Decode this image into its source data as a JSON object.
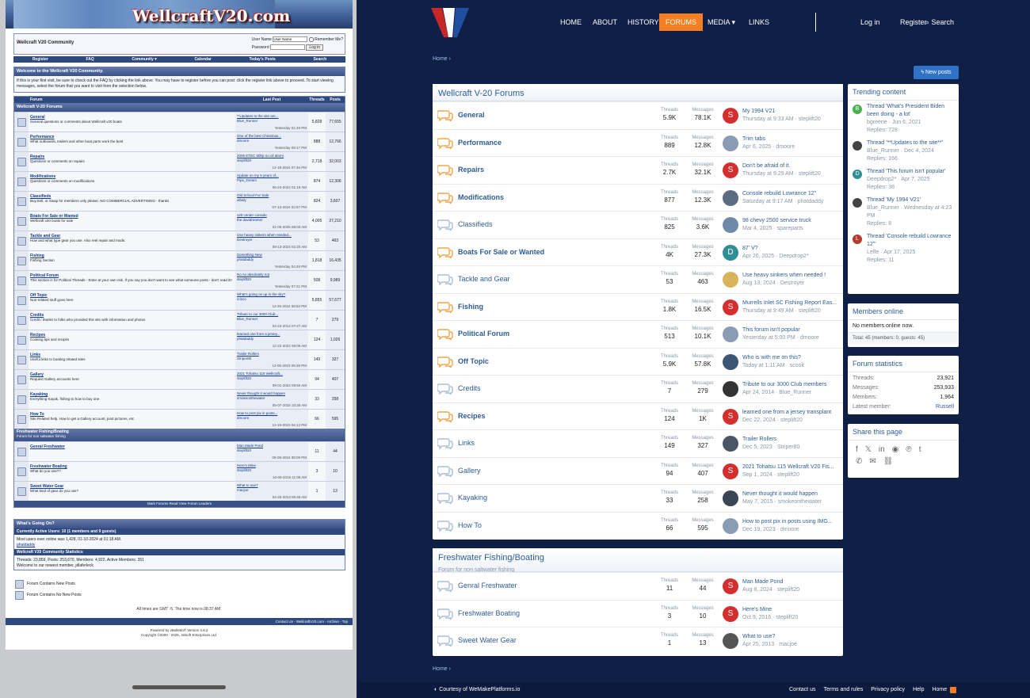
{
  "left": {
    "banner_title": "WellcraftV20.com",
    "header_title": "Wellcraft V20 Community",
    "login": {
      "user_label": "User Name",
      "user_value": "User Name",
      "remember": "Remember Me?",
      "password_label": "Password",
      "button": "Log in"
    },
    "nav": [
      "Register",
      "FAQ",
      "Community ▾",
      "Calendar",
      "Today's Posts",
      "Search"
    ],
    "welcome_title": "Welcome to the Wellcraft V20 Community.",
    "welcome_text": "If this is your first visit, be sure to check out the FAQ by clicking the link above. You may have to register before you can post: click the register link above to proceed. To start viewing messages, select the forum that you want to visit from the selection below.",
    "cols": [
      "",
      "Forum",
      "Last Post",
      "Threads",
      "Posts"
    ],
    "cat1": "Wellcraft V-20 Forums",
    "forums": [
      {
        "n": "General",
        "d": "General questions or comments about Wellcraft v20 boats",
        "lp": "**Updates to the site are...",
        "by": "Blue_Runner",
        "dt": "Yesterday 01:49 PM",
        "t": "5,828",
        "p": "77,655"
      },
      {
        "n": "Performance",
        "d": "What outboards, trailers and other boat parts work the best",
        "lp": "One of the best Christmas...",
        "by": "dmoore",
        "dt": "Yesterday 09:17 PM",
        "t": "888",
        "p": "12,766"
      },
      {
        "n": "Repairs",
        "d": "Questions or comments on repairs",
        "lp": "2006 ETEC 60hp no oil alarm",
        "by": "steplift20",
        "dt": "12-18-2024 07:46 PM",
        "t": "2,718",
        "p": "32,003"
      },
      {
        "n": "Modifications",
        "d": "Questions or comments on modifications",
        "lp": "Update on my 5 years of...",
        "by": "Pipe_Dream",
        "dt": "06-24-2024 01:18 AM",
        "t": "874",
        "p": "12,306"
      },
      {
        "n": "Classifieds",
        "d": "Buy,Sell, or Swap for members only please. NO COMMERCIAL ADVERTISING - thanks",
        "lp": "Old School For Sale",
        "by": "albaly",
        "dt": "07-13-2024 02:57 PM",
        "t": "824",
        "p": "3,607"
      },
      {
        "n": "Boats For Sale or Wanted",
        "d": "Wellcraft v20 boats for sale",
        "lp": "v20 center console",
        "by": "the davidreamer",
        "dt": "01-05-2025 08:03 AM",
        "t": "4,005",
        "p": "27,210"
      },
      {
        "n": "Tackle and Gear",
        "d": "How and what type gear you use. Also reel repair and mods.",
        "lp": "Use heavy sinkers when needed...",
        "by": "Destroyer",
        "dt": "08-13-2024 02:25 AM",
        "t": "53",
        "p": "463"
      },
      {
        "n": "Fishing",
        "d": "Fishing Section",
        "lp": "Something New",
        "by": "phatdaddy",
        "dt": "Yesterday 04:48 PM",
        "t": "1,818",
        "p": "16,435"
      },
      {
        "n": "Political Forum",
        "d": "This section is for Political Threads - Enter at your own risk. If you say you don't want to see what someone posts - don't read it!!",
        "lp": "No no absolutely not",
        "by": "steplift20",
        "dt": "Yesterday 07:21 PM",
        "t": "508",
        "p": "9,989"
      },
      {
        "n": "Off Topic",
        "d": "Non-related stuff goes here",
        "lp": "What's going on up in the sky?",
        "by": "crisco",
        "dt": "12-25-2024 08:53 PM",
        "t": "5,855",
        "p": "57,677"
      },
      {
        "n": "Credits",
        "d": "Credit / thanks to folks who provided this site with information and photos",
        "lp": "Tribute to our 3000 Club...",
        "by": "Blue_Runner",
        "dt": "04-24-2014 07:27 AM",
        "t": "7",
        "p": "279"
      },
      {
        "n": "Recipes",
        "d": "Cooking tips and recipes",
        "lp": "learned one from a jersey...",
        "by": "phatdaddy",
        "dt": "12-22-2024 08:06 AM",
        "t": "124",
        "p": "1,026"
      },
      {
        "n": "Links",
        "d": "Useful links to boating related sites",
        "lp": "Trailer Rollers",
        "by": "Striper80",
        "dt": "12-05-2023 08:39 PM",
        "t": "149",
        "p": "327"
      },
      {
        "n": "Gallery",
        "d": "Request Gallery accounts here",
        "lp": "2021 Tohatsu 115 Wellcraft...",
        "by": "steplift20",
        "dt": "09-01-2024 09:50 AM",
        "t": "94",
        "p": "407"
      },
      {
        "n": "Kayaking",
        "d": "Everything Kayak, fishing to how to buy one",
        "lp": "Never thought it would happen",
        "by": "smokeonthewater",
        "dt": "05-07-2015 10:38 AM",
        "t": "33",
        "p": "258"
      },
      {
        "n": "How To",
        "d": "Site Related help. How to get a Gallery account, post pictures, etc",
        "lp": "How to post pix in posts...",
        "by": "dmoore",
        "dt": "12-19-2023 04:13 PM",
        "t": "66",
        "p": "595"
      }
    ],
    "cat2": "Freshwater Fishing/Boating",
    "cat2_desc": "Forum for non saltwater fishing",
    "forums2": [
      {
        "n": "Genral Freshwater",
        "d": "",
        "lp": "Man Made Pond",
        "by": "steplift20",
        "dt": "08-08-2024 08:09 PM",
        "t": "11",
        "p": "44"
      },
      {
        "n": "Freshwater Boating",
        "d": "What do you use??",
        "lp": "Here's Mine",
        "by": "steplift20",
        "dt": "10-09-2016 11:08 AM",
        "t": "3",
        "p": "10"
      },
      {
        "n": "Sweet Water Gear",
        "d": "What kind of gear do you use?",
        "lp": "What to use?",
        "by": "macjoe",
        "dt": "04-25-2013 09:48 AM",
        "t": "1",
        "p": "13"
      }
    ],
    "foot_links": "Mark Forums Read    View Forum Leaders",
    "going_on": "What's Going On?",
    "active_users": "Currently Active Users: 10 (1 members and 9 guests)",
    "most_users": "Most users ever online was 1,428, 01-10-2024 at 01:18 AM.",
    "online_user": "phatdaddy",
    "stats_title": "Wellcraft V20 Community Statistics",
    "stats_text": "Threads: 23,859, Posts: 253,670, Members: 4,922, Active Members: 351",
    "newest": "Welcome to our newest member, jdlaferleck",
    "legend": [
      "Forum Contains New Posts",
      "Forum Contains No New Posts"
    ],
    "times": "All times are GMT -5. The time now is 08:37 AM.",
    "contact": "Contact Us - WellcraftV20.com - Archive - Top",
    "powered": "Powered by vBulletin® Version 3.8.2",
    "copyright": "Copyright ©2000 - 2025, Jelsoft Enterprises Ltd."
  },
  "right": {
    "nav": [
      "HOME",
      "ABOUT",
      "HISTORY",
      "FORUMS",
      "MEDIA",
      "LINKS"
    ],
    "login": "Log in",
    "register": "Register",
    "search": "Search",
    "breadcrumb": "Home",
    "new_posts": "New posts",
    "block1_title": "Wellcraft V-20 Forums",
    "threads_label": "Threads",
    "messages_label": "Messages",
    "nodes": [
      {
        "n": "General",
        "u": true,
        "t": "5.9K",
        "m": "78.1K",
        "lt": "My 1994 V21",
        "meta": "Thursday at 9:33 AM · steplift20",
        "av": "S",
        "ac": "#d32f2f"
      },
      {
        "n": "Performance",
        "u": true,
        "t": "889",
        "m": "12.8K",
        "lt": "Trim tabs",
        "meta": "Apr 6, 2025 · dmoore",
        "av": "",
        "ac": "#8a9bb4"
      },
      {
        "n": "Repairs",
        "u": true,
        "t": "2.7K",
        "m": "32.1K",
        "lt": "Don't be afraid of it.",
        "meta": "Thursday at 9:29 AM · steplift20",
        "av": "S",
        "ac": "#d32f2f"
      },
      {
        "n": "Modifications",
        "u": true,
        "t": "877",
        "m": "12.3K",
        "lt": "Console rebuild Lowrance 12\"",
        "meta": "Saturday at 9:17 AM · phatdaddy",
        "av": "",
        "ac": "#5b6b80"
      },
      {
        "n": "Classifieds",
        "u": false,
        "t": "825",
        "m": "3.6K",
        "lt": "98 chevy 2500 service truck",
        "meta": "Mar 4, 2025 · spareparts",
        "av": "",
        "ac": "#6f8aa8"
      },
      {
        "n": "Boats For Sale or Wanted",
        "u": true,
        "t": "4K",
        "m": "27.3K",
        "lt": "87' V?",
        "meta": "Apr 26, 2025 · Deepdrop2*",
        "av": "D",
        "ac": "#2f8f95"
      },
      {
        "n": "Tackle and Gear",
        "u": false,
        "t": "53",
        "m": "463",
        "lt": "Use heavy sinkers when needed !",
        "meta": "Aug 13, 2024 · Destroyer",
        "av": "",
        "ac": "#d9b35a"
      },
      {
        "n": "Fishing",
        "u": true,
        "t": "1.8K",
        "m": "16.5K",
        "lt": "Murrells Inlet SC Fishing Report Eas...",
        "meta": "Thursday at 9:49 AM · steplift20",
        "av": "S",
        "ac": "#d32f2f"
      },
      {
        "n": "Political Forum",
        "u": true,
        "t": "513",
        "m": "10.1K",
        "lt": "This forum isn't popular",
        "meta": "Yesterday at 5:00 PM · dmoore",
        "av": "",
        "ac": "#8a9bb4"
      },
      {
        "n": "Off Topic",
        "u": true,
        "t": "5.9K",
        "m": "57.8K",
        "lt": "Who is with me on this?",
        "meta": "Today at 1:11 AM · scook",
        "av": "",
        "ac": "#3d5573"
      },
      {
        "n": "Credits",
        "u": false,
        "t": "7",
        "m": "279",
        "lt": "Tribute to our 3000 Club members",
        "meta": "Apr 24, 2014 · Blue_Runner",
        "av": "",
        "ac": "#333"
      },
      {
        "n": "Recipes",
        "u": true,
        "t": "124",
        "m": "1K",
        "lt": "learned one from a jersey transplant",
        "meta": "Dec 22, 2024 · steplift20",
        "av": "S",
        "ac": "#d32f2f"
      },
      {
        "n": "Links",
        "u": false,
        "t": "149",
        "m": "327",
        "lt": "Trailer Rollers",
        "meta": "Dec 5, 2023 · Striper80",
        "av": "",
        "ac": "#4a5566"
      },
      {
        "n": "Gallery",
        "u": false,
        "t": "94",
        "m": "407",
        "lt": "2021 Tohatsu 115 Wellcraft V20 Fis...",
        "meta": "Sep 1, 2024 · steplift20",
        "av": "S",
        "ac": "#d32f2f"
      },
      {
        "n": "Kayaking",
        "u": false,
        "t": "33",
        "m": "258",
        "lt": "Never thought it would happen",
        "meta": "May 7, 2015 · smokeonthewater",
        "av": "",
        "ac": "#3a4655"
      },
      {
        "n": "How To",
        "u": false,
        "t": "66",
        "m": "595",
        "lt": "How to post pix in posts using IMG...",
        "meta": "Dec 19, 2023 · dmoore",
        "av": "",
        "ac": "#8a9bb4"
      }
    ],
    "block2_title": "Freshwater Fishing/Boating",
    "block2_desc": "Forum for non saltwater fishing",
    "nodes2": [
      {
        "n": "Genral Freshwater",
        "u": false,
        "t": "11",
        "m": "44",
        "lt": "Man Made Pond",
        "meta": "Aug 8, 2024 · steplift20",
        "av": "S",
        "ac": "#d32f2f"
      },
      {
        "n": "Freshwater Boating",
        "u": false,
        "t": "3",
        "m": "10",
        "lt": "Here's Mine",
        "meta": "Oct 9, 2016 · steplift20",
        "av": "S",
        "ac": "#d32f2f"
      },
      {
        "n": "Sweet Water Gear",
        "u": false,
        "t": "1",
        "m": "13",
        "lt": "What to use?",
        "meta": "Apr 25, 2013 · macjoe",
        "av": "",
        "ac": "#555"
      }
    ],
    "trending_title": "Trending content",
    "trending": [
      {
        "t": "Thread 'What's President Biden been doing - a lot'",
        "m": "bgreene · Jun 6, 2021",
        "r": "Replies: 728",
        "a": "B",
        "c": "#4caf50"
      },
      {
        "t": "Thread '**Updates to the site**'",
        "m": "Blue_Runner · Dec 4, 2024",
        "r": "Replies: 166",
        "a": "",
        "c": "#444"
      },
      {
        "t": "Thread 'This forum isn't popular'",
        "m": "Deepdrop2* · Apr 7, 2025",
        "r": "Replies: 38",
        "a": "D",
        "c": "#2f8f95"
      },
      {
        "t": "Thread 'My 1994 V21'",
        "m": "Blue_Runner · Wednesday at 4:23 PM",
        "r": "Replies: 8",
        "a": "",
        "c": "#444"
      },
      {
        "t": "Thread 'Console rebuild Lowrance 12\"'",
        "m": "Leffe · Apr 17, 2025",
        "r": "Replies: 11",
        "a": "L",
        "c": "#b23a2e"
      }
    ],
    "members_title": "Members online",
    "members_text": "No members online now.",
    "members_total": "Total: 45 (members: 0, guests: 45)",
    "stats_title": "Forum statistics",
    "stats": [
      [
        "Threads:",
        "23,921"
      ],
      [
        "Messages:",
        "253,933"
      ],
      [
        "Members:",
        "1,964"
      ],
      [
        "Latest member:",
        "Russell"
      ]
    ],
    "share_title": "Share this page",
    "footer_left": "Courtesy of",
    "footer_brand": "WeMakePlatforms.io",
    "footer_links": [
      "Contact us",
      "Terms and rules",
      "Privacy policy",
      "Help",
      "Home"
    ],
    "colors": {
      "navy": "#0f1f46",
      "orange": "#f47e20",
      "link": "#2d5c93"
    }
  }
}
